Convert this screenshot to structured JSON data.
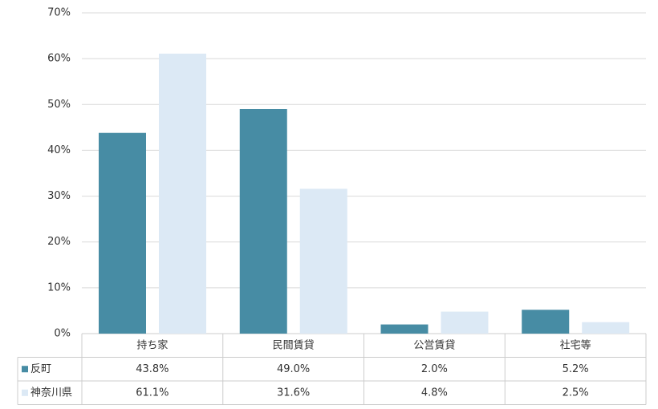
{
  "chart_data": {
    "type": "bar",
    "categories": [
      "持ち家",
      "民間賃貸",
      "公営賃貸",
      "社宅等"
    ],
    "series": [
      {
        "name": "反町",
        "color": "#478ca4",
        "values": [
          43.8,
          49.0,
          2.0,
          5.2
        ],
        "value_labels": [
          "43.8%",
          "49.0%",
          "2.0%",
          "5.2%"
        ]
      },
      {
        "name": "神奈川県",
        "color": "#dce9f5",
        "values": [
          61.1,
          31.6,
          4.8,
          2.5
        ],
        "value_labels": [
          "61.1%",
          "31.6%",
          "4.8%",
          "2.5%"
        ]
      }
    ],
    "ylim": [
      0,
      70
    ],
    "yticks": [
      {
        "value": 0,
        "label": "0%"
      },
      {
        "value": 10,
        "label": "10%"
      },
      {
        "value": 20,
        "label": "20%"
      },
      {
        "value": 30,
        "label": "30%"
      },
      {
        "value": 40,
        "label": "40%"
      },
      {
        "value": 50,
        "label": "50%"
      },
      {
        "value": 60,
        "label": "60%"
      },
      {
        "value": 70,
        "label": "70%"
      }
    ],
    "grid": true
  }
}
